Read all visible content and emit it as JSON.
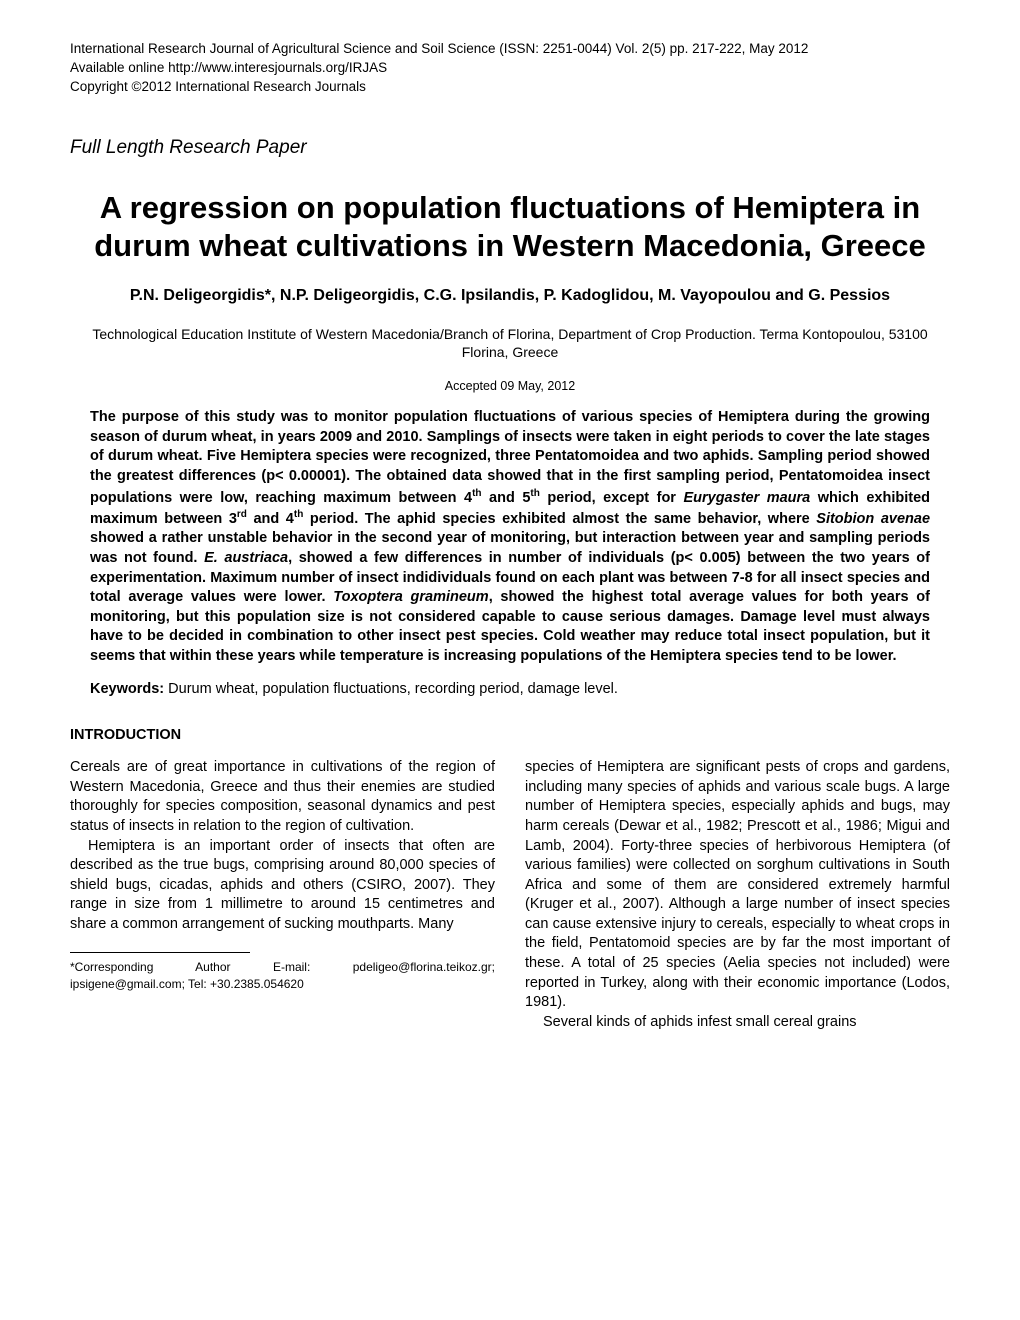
{
  "header": {
    "line1": "International Research Journal of Agricultural Science and Soil Science (ISSN: 2251-0044) Vol. 2(5) pp. 217-222, May 2012",
    "line2": "Available online http://www.interesjournals.org/IRJAS",
    "line3": "Copyright ©2012 International Research Journals"
  },
  "paper_type": "Full Length Research Paper",
  "title": "A regression on population fluctuations of Hemiptera in durum wheat cultivations in Western Macedonia, Greece",
  "authors": "P.N. Deligeorgidis*, N.P. Deligeorgidis, C.G. Ipsilandis, P. Kadoglidou, M. Vayopoulou and G. Pessios",
  "affiliation": "Technological Education Institute of Western Macedonia/Branch of Florina, Department of Crop Production. Terma Kontopoulou, 53100 Florina, Greece",
  "accepted": "Accepted 09 May, 2012",
  "abstract_parts": {
    "p1": "The purpose of this study was to monitor population fluctuations of various species of Hemiptera during the growing season of durum wheat, in years 2009 and 2010. Samplings of insects were taken in eight periods to cover the late stages of durum wheat. Five Hemiptera species were recognized, three Pentatomoidea and two aphids. Sampling period showed the greatest differences (p< 0.00001). The obtained data showed that in the first sampling period, Pentatomoidea insect populations were low, reaching maximum between 4",
    "p2": " and 5",
    "p3": " period, except for ",
    "italic1": "Eurygaster maura",
    "p4": " which exhibited maximum between 3",
    "p5": " and 4",
    "p6": " period. The aphid species exhibited almost the same behavior, where ",
    "italic2": "Sitobion avenae",
    "p7": " showed a rather unstable behavior in the second year of monitoring, but interaction between year and sampling periods was not found. ",
    "italic3": "E. austriaca",
    "p8": ", showed a few differences in number of individuals (p< 0.005) between the two years of experimentation. Maximum number of insect indidividuals found on each plant was between 7-8 for all insect species and total average values were lower. ",
    "italic4": "Toxoptera gramineum",
    "p9": ", showed the highest total average values for both years of monitoring, but this population size is not considered capable to cause serious damages. Damage level must always have to be decided in combination to other insect pest species. Cold weather may reduce total insect population, but it seems that within these years while temperature is increasing populations of the Hemiptera species tend to be lower.",
    "sup_th": "th",
    "sup_rd": "rd"
  },
  "keywords": {
    "label": "Keywords:",
    "text": " Durum wheat, population fluctuations, recording period, damage level."
  },
  "section_heading": "INTRODUCTION",
  "body": {
    "left_p1": "Cereals are of great importance in cultivations of the region of Western Macedonia, Greece and thus their enemies are studied thoroughly for species composition, seasonal dynamics and pest status of insects in relation to the region of cultivation.",
    "left_p2": "Hemiptera is an important order of insects that often are described as the true bugs, comprising around 80,000 species of shield bugs, cicadas, aphids and others (CSIRO, 2007). They range in size from 1 millimetre to around 15 centimetres and share a common arrangement of sucking mouthparts. Many",
    "right_p1": "species of Hemiptera are significant pests of crops and gardens, including many species of aphids and various scale bugs. A large number of Hemiptera species, especially aphids and bugs, may harm cereals (Dewar et al., 1982; Prescott et al., 1986; Migui and Lamb, 2004). Forty-three species of herbivorous Hemiptera (of various families) were collected on sorghum cultivations in South Africa and some of them are considered extremely harmful (Kruger et al., 2007). Although a large number of insect species can cause extensive injury to cereals, especially to wheat crops in the field, Pentatomoid species are by far the most important of these. A total of 25 species (Aelia species not included) were reported in Turkey, along with their economic importance (Lodos, 1981).",
    "right_p2": "Several kinds of aphids infest small cereal grains"
  },
  "corresponding": "*Corresponding Author E-mail: pdeligeo@florina.teikoz.gr; ipsigene@gmail.com; Tel: +30.2385.054620"
}
